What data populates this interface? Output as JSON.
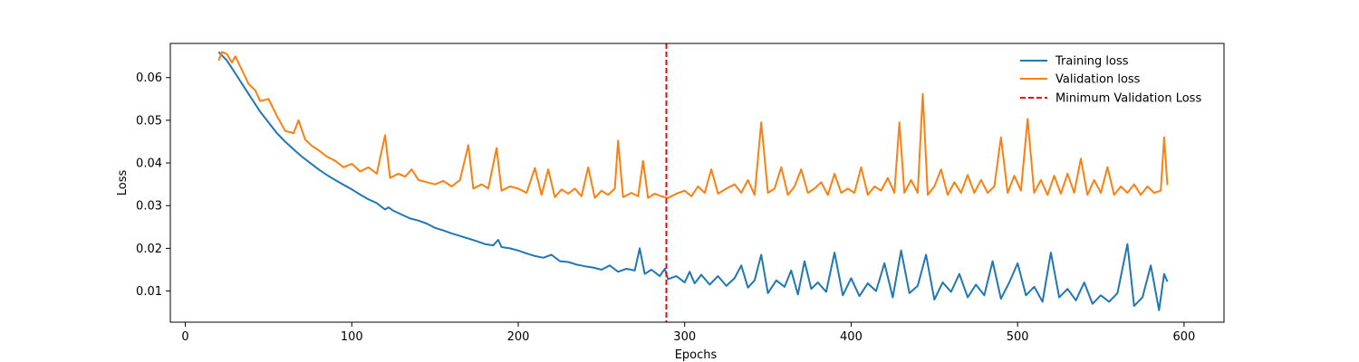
{
  "chart_data": {
    "type": "line",
    "title": "",
    "xlabel": "Epochs",
    "ylabel": "Loss",
    "xlim": [
      -9,
      624
    ],
    "ylim": [
      0.0027,
      0.068
    ],
    "xticks": [
      0,
      100,
      200,
      300,
      400,
      500,
      600
    ],
    "yticks": [
      0.01,
      0.02,
      0.03,
      0.04,
      0.05,
      0.06
    ],
    "grid": false,
    "legend_position": "top-right",
    "series": [
      {
        "name": "Training loss",
        "color": "#1f77b4",
        "style": "solid",
        "points": [
          [
            20,
            0.066
          ],
          [
            25,
            0.064
          ],
          [
            30,
            0.061
          ],
          [
            35,
            0.058
          ],
          [
            40,
            0.055
          ],
          [
            45,
            0.052
          ],
          [
            50,
            0.0495
          ],
          [
            55,
            0.047
          ],
          [
            60,
            0.045
          ],
          [
            65,
            0.0432
          ],
          [
            70,
            0.0415
          ],
          [
            75,
            0.04
          ],
          [
            80,
            0.0385
          ],
          [
            85,
            0.0372
          ],
          [
            90,
            0.036
          ],
          [
            95,
            0.0349
          ],
          [
            100,
            0.0338
          ],
          [
            105,
            0.0326
          ],
          [
            110,
            0.0315
          ],
          [
            115,
            0.0306
          ],
          [
            120,
            0.0291
          ],
          [
            122,
            0.0296
          ],
          [
            125,
            0.0288
          ],
          [
            130,
            0.0279
          ],
          [
            135,
            0.027
          ],
          [
            140,
            0.0265
          ],
          [
            145,
            0.0258
          ],
          [
            150,
            0.0248
          ],
          [
            155,
            0.0242
          ],
          [
            160,
            0.0235
          ],
          [
            165,
            0.0229
          ],
          [
            170,
            0.0223
          ],
          [
            175,
            0.0217
          ],
          [
            180,
            0.021
          ],
          [
            185,
            0.0207
          ],
          [
            188,
            0.022
          ],
          [
            190,
            0.0203
          ],
          [
            195,
            0.02
          ],
          [
            200,
            0.0195
          ],
          [
            205,
            0.0188
          ],
          [
            210,
            0.0182
          ],
          [
            215,
            0.0178
          ],
          [
            220,
            0.0185
          ],
          [
            225,
            0.017
          ],
          [
            230,
            0.0168
          ],
          [
            235,
            0.0162
          ],
          [
            240,
            0.0158
          ],
          [
            245,
            0.0155
          ],
          [
            250,
            0.015
          ],
          [
            255,
            0.016
          ],
          [
            260,
            0.0145
          ],
          [
            265,
            0.0152
          ],
          [
            270,
            0.0148
          ],
          [
            273,
            0.02
          ],
          [
            276,
            0.014
          ],
          [
            280,
            0.015
          ],
          [
            285,
            0.0135
          ],
          [
            288,
            0.0152
          ],
          [
            290,
            0.0128
          ],
          [
            295,
            0.0135
          ],
          [
            300,
            0.012
          ],
          [
            303,
            0.0145
          ],
          [
            306,
            0.0118
          ],
          [
            310,
            0.0138
          ],
          [
            315,
            0.0115
          ],
          [
            320,
            0.0135
          ],
          [
            325,
            0.0112
          ],
          [
            330,
            0.013
          ],
          [
            334,
            0.016
          ],
          [
            338,
            0.0108
          ],
          [
            342,
            0.0125
          ],
          [
            346,
            0.0185
          ],
          [
            350,
            0.0095
          ],
          [
            355,
            0.0125
          ],
          [
            360,
            0.011
          ],
          [
            364,
            0.0148
          ],
          [
            368,
            0.0092
          ],
          [
            372,
            0.017
          ],
          [
            376,
            0.0105
          ],
          [
            380,
            0.012
          ],
          [
            385,
            0.0098
          ],
          [
            390,
            0.019
          ],
          [
            395,
            0.009
          ],
          [
            400,
            0.013
          ],
          [
            405,
            0.0088
          ],
          [
            410,
            0.0118
          ],
          [
            415,
            0.01
          ],
          [
            420,
            0.0165
          ],
          [
            425,
            0.0085
          ],
          [
            430,
            0.0195
          ],
          [
            435,
            0.0095
          ],
          [
            440,
            0.0112
          ],
          [
            445,
            0.0185
          ],
          [
            450,
            0.008
          ],
          [
            455,
            0.012
          ],
          [
            460,
            0.0098
          ],
          [
            465,
            0.014
          ],
          [
            470,
            0.0085
          ],
          [
            475,
            0.0115
          ],
          [
            480,
            0.009
          ],
          [
            485,
            0.017
          ],
          [
            490,
            0.0082
          ],
          [
            495,
            0.012
          ],
          [
            500,
            0.0165
          ],
          [
            505,
            0.009
          ],
          [
            510,
            0.011
          ],
          [
            515,
            0.0075
          ],
          [
            520,
            0.019
          ],
          [
            525,
            0.0085
          ],
          [
            530,
            0.0105
          ],
          [
            535,
            0.0078
          ],
          [
            540,
            0.012
          ],
          [
            545,
            0.007
          ],
          [
            550,
            0.009
          ],
          [
            555,
            0.0075
          ],
          [
            560,
            0.0095
          ],
          [
            566,
            0.021
          ],
          [
            570,
            0.0065
          ],
          [
            575,
            0.0085
          ],
          [
            580,
            0.016
          ],
          [
            585,
            0.0055
          ],
          [
            588,
            0.014
          ],
          [
            590,
            0.0122
          ]
        ]
      },
      {
        "name": "Validation loss",
        "color": "#ff7f0e",
        "style": "solid",
        "points": [
          [
            20,
            0.064
          ],
          [
            22,
            0.066
          ],
          [
            25,
            0.0655
          ],
          [
            28,
            0.0635
          ],
          [
            30,
            0.065
          ],
          [
            35,
            0.061
          ],
          [
            38,
            0.0585
          ],
          [
            42,
            0.057
          ],
          [
            45,
            0.0545
          ],
          [
            50,
            0.055
          ],
          [
            55,
            0.051
          ],
          [
            60,
            0.0475
          ],
          [
            65,
            0.047
          ],
          [
            68,
            0.05
          ],
          [
            72,
            0.0455
          ],
          [
            76,
            0.044
          ],
          [
            80,
            0.043
          ],
          [
            85,
            0.0415
          ],
          [
            90,
            0.0405
          ],
          [
            95,
            0.039
          ],
          [
            100,
            0.0398
          ],
          [
            105,
            0.038
          ],
          [
            110,
            0.039
          ],
          [
            115,
            0.0375
          ],
          [
            120,
            0.0465
          ],
          [
            123,
            0.0365
          ],
          [
            128,
            0.0375
          ],
          [
            132,
            0.0368
          ],
          [
            136,
            0.0385
          ],
          [
            140,
            0.036
          ],
          [
            145,
            0.0355
          ],
          [
            150,
            0.035
          ],
          [
            155,
            0.0358
          ],
          [
            160,
            0.0345
          ],
          [
            165,
            0.036
          ],
          [
            170,
            0.0442
          ],
          [
            173,
            0.034
          ],
          [
            178,
            0.035
          ],
          [
            182,
            0.034
          ],
          [
            187,
            0.0435
          ],
          [
            190,
            0.0335
          ],
          [
            195,
            0.0345
          ],
          [
            200,
            0.034
          ],
          [
            205,
            0.033
          ],
          [
            210,
            0.0388
          ],
          [
            214,
            0.0325
          ],
          [
            218,
            0.0385
          ],
          [
            222,
            0.032
          ],
          [
            226,
            0.0338
          ],
          [
            230,
            0.0328
          ],
          [
            234,
            0.034
          ],
          [
            238,
            0.0322
          ],
          [
            242,
            0.039
          ],
          [
            246,
            0.0318
          ],
          [
            250,
            0.0335
          ],
          [
            254,
            0.0325
          ],
          [
            258,
            0.034
          ],
          [
            260,
            0.0452
          ],
          [
            263,
            0.032
          ],
          [
            268,
            0.033
          ],
          [
            272,
            0.0322
          ],
          [
            275,
            0.0405
          ],
          [
            278,
            0.0318
          ],
          [
            282,
            0.0328
          ],
          [
            286,
            0.0322
          ],
          [
            290,
            0.0318
          ],
          [
            295,
            0.0328
          ],
          [
            300,
            0.0335
          ],
          [
            304,
            0.0322
          ],
          [
            308,
            0.0345
          ],
          [
            312,
            0.033
          ],
          [
            316,
            0.0385
          ],
          [
            320,
            0.0328
          ],
          [
            325,
            0.034
          ],
          [
            330,
            0.035
          ],
          [
            334,
            0.033
          ],
          [
            338,
            0.036
          ],
          [
            342,
            0.0325
          ],
          [
            346,
            0.0495
          ],
          [
            350,
            0.033
          ],
          [
            354,
            0.034
          ],
          [
            358,
            0.039
          ],
          [
            362,
            0.0325
          ],
          [
            366,
            0.0345
          ],
          [
            370,
            0.0385
          ],
          [
            374,
            0.033
          ],
          [
            378,
            0.034
          ],
          [
            382,
            0.0355
          ],
          [
            386,
            0.0325
          ],
          [
            390,
            0.0375
          ],
          [
            394,
            0.033
          ],
          [
            398,
            0.034
          ],
          [
            402,
            0.033
          ],
          [
            406,
            0.039
          ],
          [
            410,
            0.0325
          ],
          [
            414,
            0.0345
          ],
          [
            418,
            0.0335
          ],
          [
            422,
            0.0365
          ],
          [
            426,
            0.033
          ],
          [
            429,
            0.0495
          ],
          [
            432,
            0.033
          ],
          [
            436,
            0.036
          ],
          [
            440,
            0.033
          ],
          [
            443,
            0.0562
          ],
          [
            446,
            0.0325
          ],
          [
            450,
            0.0345
          ],
          [
            454,
            0.0385
          ],
          [
            458,
            0.0325
          ],
          [
            462,
            0.0355
          ],
          [
            466,
            0.033
          ],
          [
            470,
            0.0372
          ],
          [
            474,
            0.033
          ],
          [
            478,
            0.036
          ],
          [
            482,
            0.033
          ],
          [
            486,
            0.0345
          ],
          [
            490,
            0.046
          ],
          [
            494,
            0.033
          ],
          [
            498,
            0.037
          ],
          [
            502,
            0.0335
          ],
          [
            506,
            0.0503
          ],
          [
            510,
            0.033
          ],
          [
            514,
            0.036
          ],
          [
            518,
            0.0325
          ],
          [
            522,
            0.037
          ],
          [
            526,
            0.0328
          ],
          [
            530,
            0.0375
          ],
          [
            534,
            0.033
          ],
          [
            538,
            0.041
          ],
          [
            542,
            0.0325
          ],
          [
            546,
            0.036
          ],
          [
            550,
            0.033
          ],
          [
            554,
            0.039
          ],
          [
            558,
            0.0325
          ],
          [
            562,
            0.0345
          ],
          [
            566,
            0.033
          ],
          [
            570,
            0.035
          ],
          [
            574,
            0.0325
          ],
          [
            578,
            0.0345
          ],
          [
            582,
            0.033
          ],
          [
            586,
            0.0335
          ],
          [
            588,
            0.046
          ],
          [
            590,
            0.0348
          ]
        ]
      }
    ],
    "reference_line": {
      "name": "Minimum Validation Loss",
      "x": 289,
      "color": "#ff0000",
      "style": "dashed"
    }
  }
}
